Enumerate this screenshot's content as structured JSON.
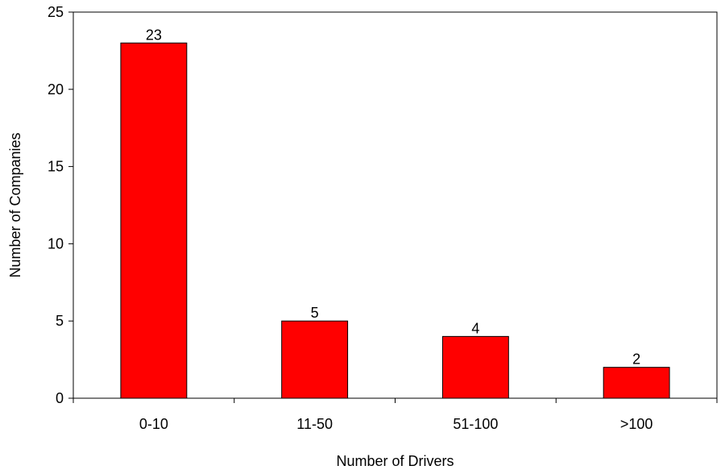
{
  "chart_data": {
    "type": "bar",
    "title": "",
    "xlabel": "Number of Drivers",
    "ylabel": "Number of Companies",
    "categories": [
      "0-10",
      "11-50",
      "51-100",
      ">100"
    ],
    "values": [
      23,
      5,
      4,
      2
    ],
    "data_labels": [
      "23",
      "5",
      "4",
      "2"
    ],
    "ylim": [
      0,
      25
    ],
    "yticks": [
      0,
      5,
      10,
      15,
      20,
      25
    ],
    "ytick_labels": [
      "0",
      "5",
      "10",
      "15",
      "20",
      "25"
    ],
    "grid": false,
    "legend": "none",
    "bar_color": "#ff0000",
    "bar_edge_color": "#000000"
  }
}
